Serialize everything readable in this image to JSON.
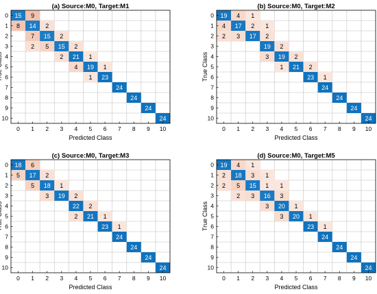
{
  "colors": {
    "high": "#0f72bd",
    "low": "#ffffff",
    "mid": "#f4cdbd",
    "grid": "#d0d0d0",
    "frame": "#000000",
    "text_dark": "#000000",
    "text_light": "#ffffff"
  },
  "chart_data": [
    {
      "type": "heatmap",
      "title": "(a) Source:M0, Target:M1",
      "xlabel": "Predicted Class",
      "ylabel": "True Class",
      "categories": [
        "0",
        "1",
        "2",
        "3",
        "4",
        "5",
        "6",
        "7",
        "8",
        "9",
        "10"
      ],
      "cells": [
        {
          "row": 0,
          "col": 0,
          "value": 15
        },
        {
          "row": 0,
          "col": 1,
          "value": 9
        },
        {
          "row": 1,
          "col": 0,
          "value": 8
        },
        {
          "row": 1,
          "col": 1,
          "value": 14
        },
        {
          "row": 1,
          "col": 2,
          "value": 2
        },
        {
          "row": 2,
          "col": 1,
          "value": 7
        },
        {
          "row": 2,
          "col": 2,
          "value": 15
        },
        {
          "row": 2,
          "col": 3,
          "value": 2
        },
        {
          "row": 3,
          "col": 1,
          "value": 2
        },
        {
          "row": 3,
          "col": 2,
          "value": 5
        },
        {
          "row": 3,
          "col": 3,
          "value": 15
        },
        {
          "row": 3,
          "col": 4,
          "value": 2
        },
        {
          "row": 4,
          "col": 3,
          "value": 2
        },
        {
          "row": 4,
          "col": 4,
          "value": 21
        },
        {
          "row": 4,
          "col": 5,
          "value": 1
        },
        {
          "row": 5,
          "col": 4,
          "value": 4
        },
        {
          "row": 5,
          "col": 5,
          "value": 19
        },
        {
          "row": 5,
          "col": 6,
          "value": 1
        },
        {
          "row": 6,
          "col": 5,
          "value": 1
        },
        {
          "row": 6,
          "col": 6,
          "value": 23
        },
        {
          "row": 7,
          "col": 7,
          "value": 24
        },
        {
          "row": 8,
          "col": 8,
          "value": 24
        },
        {
          "row": 9,
          "col": 9,
          "value": 24
        },
        {
          "row": 10,
          "col": 10,
          "value": 24
        }
      ]
    },
    {
      "type": "heatmap",
      "title": "(b) Source:M0, Target:M2",
      "xlabel": "Predicted Class",
      "ylabel": "True Class",
      "categories": [
        "0",
        "1",
        "2",
        "3",
        "4",
        "5",
        "6",
        "7",
        "8",
        "9",
        "10"
      ],
      "cells": [
        {
          "row": 0,
          "col": 0,
          "value": 19
        },
        {
          "row": 0,
          "col": 1,
          "value": 4
        },
        {
          "row": 0,
          "col": 2,
          "value": 1
        },
        {
          "row": 1,
          "col": 0,
          "value": 4
        },
        {
          "row": 1,
          "col": 1,
          "value": 17
        },
        {
          "row": 1,
          "col": 2,
          "value": 2
        },
        {
          "row": 1,
          "col": 3,
          "value": 1
        },
        {
          "row": 2,
          "col": 0,
          "value": 2
        },
        {
          "row": 2,
          "col": 1,
          "value": 3
        },
        {
          "row": 2,
          "col": 2,
          "value": 17
        },
        {
          "row": 2,
          "col": 3,
          "value": 2
        },
        {
          "row": 3,
          "col": 3,
          "value": 19
        },
        {
          "row": 3,
          "col": 4,
          "value": 2
        },
        {
          "row": 4,
          "col": 3,
          "value": 3
        },
        {
          "row": 4,
          "col": 4,
          "value": 19
        },
        {
          "row": 4,
          "col": 5,
          "value": 2
        },
        {
          "row": 5,
          "col": 4,
          "value": 1
        },
        {
          "row": 5,
          "col": 5,
          "value": 21
        },
        {
          "row": 5,
          "col": 6,
          "value": 2
        },
        {
          "row": 6,
          "col": 6,
          "value": 23
        },
        {
          "row": 6,
          "col": 7,
          "value": 1
        },
        {
          "row": 7,
          "col": 7,
          "value": 24
        },
        {
          "row": 8,
          "col": 8,
          "value": 24
        },
        {
          "row": 9,
          "col": 9,
          "value": 24
        },
        {
          "row": 10,
          "col": 10,
          "value": 24
        }
      ]
    },
    {
      "type": "heatmap",
      "title": "(c) Source:M0, Target:M3",
      "xlabel": "Predicted Class",
      "ylabel": "True Class",
      "categories": [
        "0",
        "1",
        "2",
        "3",
        "4",
        "5",
        "6",
        "7",
        "8",
        "9",
        "10"
      ],
      "cells": [
        {
          "row": 0,
          "col": 0,
          "value": 18
        },
        {
          "row": 0,
          "col": 1,
          "value": 6
        },
        {
          "row": 1,
          "col": 0,
          "value": 5
        },
        {
          "row": 1,
          "col": 1,
          "value": 17
        },
        {
          "row": 1,
          "col": 2,
          "value": 2
        },
        {
          "row": 2,
          "col": 1,
          "value": 5
        },
        {
          "row": 2,
          "col": 2,
          "value": 18
        },
        {
          "row": 2,
          "col": 3,
          "value": 1
        },
        {
          "row": 3,
          "col": 2,
          "value": 3
        },
        {
          "row": 3,
          "col": 3,
          "value": 19
        },
        {
          "row": 3,
          "col": 4,
          "value": 2
        },
        {
          "row": 4,
          "col": 4,
          "value": 22
        },
        {
          "row": 4,
          "col": 5,
          "value": 2
        },
        {
          "row": 5,
          "col": 4,
          "value": 2
        },
        {
          "row": 5,
          "col": 5,
          "value": 21
        },
        {
          "row": 5,
          "col": 6,
          "value": 1
        },
        {
          "row": 6,
          "col": 6,
          "value": 23
        },
        {
          "row": 6,
          "col": 7,
          "value": 1
        },
        {
          "row": 7,
          "col": 7,
          "value": 24
        },
        {
          "row": 8,
          "col": 8,
          "value": 24
        },
        {
          "row": 9,
          "col": 9,
          "value": 24
        },
        {
          "row": 10,
          "col": 10,
          "value": 24
        }
      ]
    },
    {
      "type": "heatmap",
      "title": "(d) Source:M0, Target:M5",
      "xlabel": "Predicted Class",
      "ylabel": "True Class",
      "categories": [
        "0",
        "1",
        "2",
        "3",
        "4",
        "5",
        "6",
        "7",
        "8",
        "9",
        "10"
      ],
      "cells": [
        {
          "row": 0,
          "col": 0,
          "value": 19
        },
        {
          "row": 0,
          "col": 1,
          "value": 4
        },
        {
          "row": 0,
          "col": 2,
          "value": 1
        },
        {
          "row": 1,
          "col": 0,
          "value": 2
        },
        {
          "row": 1,
          "col": 1,
          "value": 18
        },
        {
          "row": 1,
          "col": 2,
          "value": 3
        },
        {
          "row": 1,
          "col": 3,
          "value": 1
        },
        {
          "row": 2,
          "col": 0,
          "value": 2
        },
        {
          "row": 2,
          "col": 1,
          "value": 5
        },
        {
          "row": 2,
          "col": 2,
          "value": 15
        },
        {
          "row": 2,
          "col": 3,
          "value": 1
        },
        {
          "row": 2,
          "col": 4,
          "value": 1
        },
        {
          "row": 3,
          "col": 1,
          "value": 2
        },
        {
          "row": 3,
          "col": 2,
          "value": 3
        },
        {
          "row": 3,
          "col": 3,
          "value": 16
        },
        {
          "row": 3,
          "col": 4,
          "value": 3
        },
        {
          "row": 4,
          "col": 3,
          "value": 3
        },
        {
          "row": 4,
          "col": 4,
          "value": 20
        },
        {
          "row": 4,
          "col": 5,
          "value": 1
        },
        {
          "row": 5,
          "col": 4,
          "value": 3
        },
        {
          "row": 5,
          "col": 5,
          "value": 20
        },
        {
          "row": 5,
          "col": 6,
          "value": 1
        },
        {
          "row": 6,
          "col": 6,
          "value": 23
        },
        {
          "row": 6,
          "col": 7,
          "value": 1
        },
        {
          "row": 7,
          "col": 7,
          "value": 24
        },
        {
          "row": 8,
          "col": 8,
          "value": 24
        },
        {
          "row": 9,
          "col": 9,
          "value": 24
        },
        {
          "row": 10,
          "col": 10,
          "value": 24
        }
      ]
    }
  ]
}
